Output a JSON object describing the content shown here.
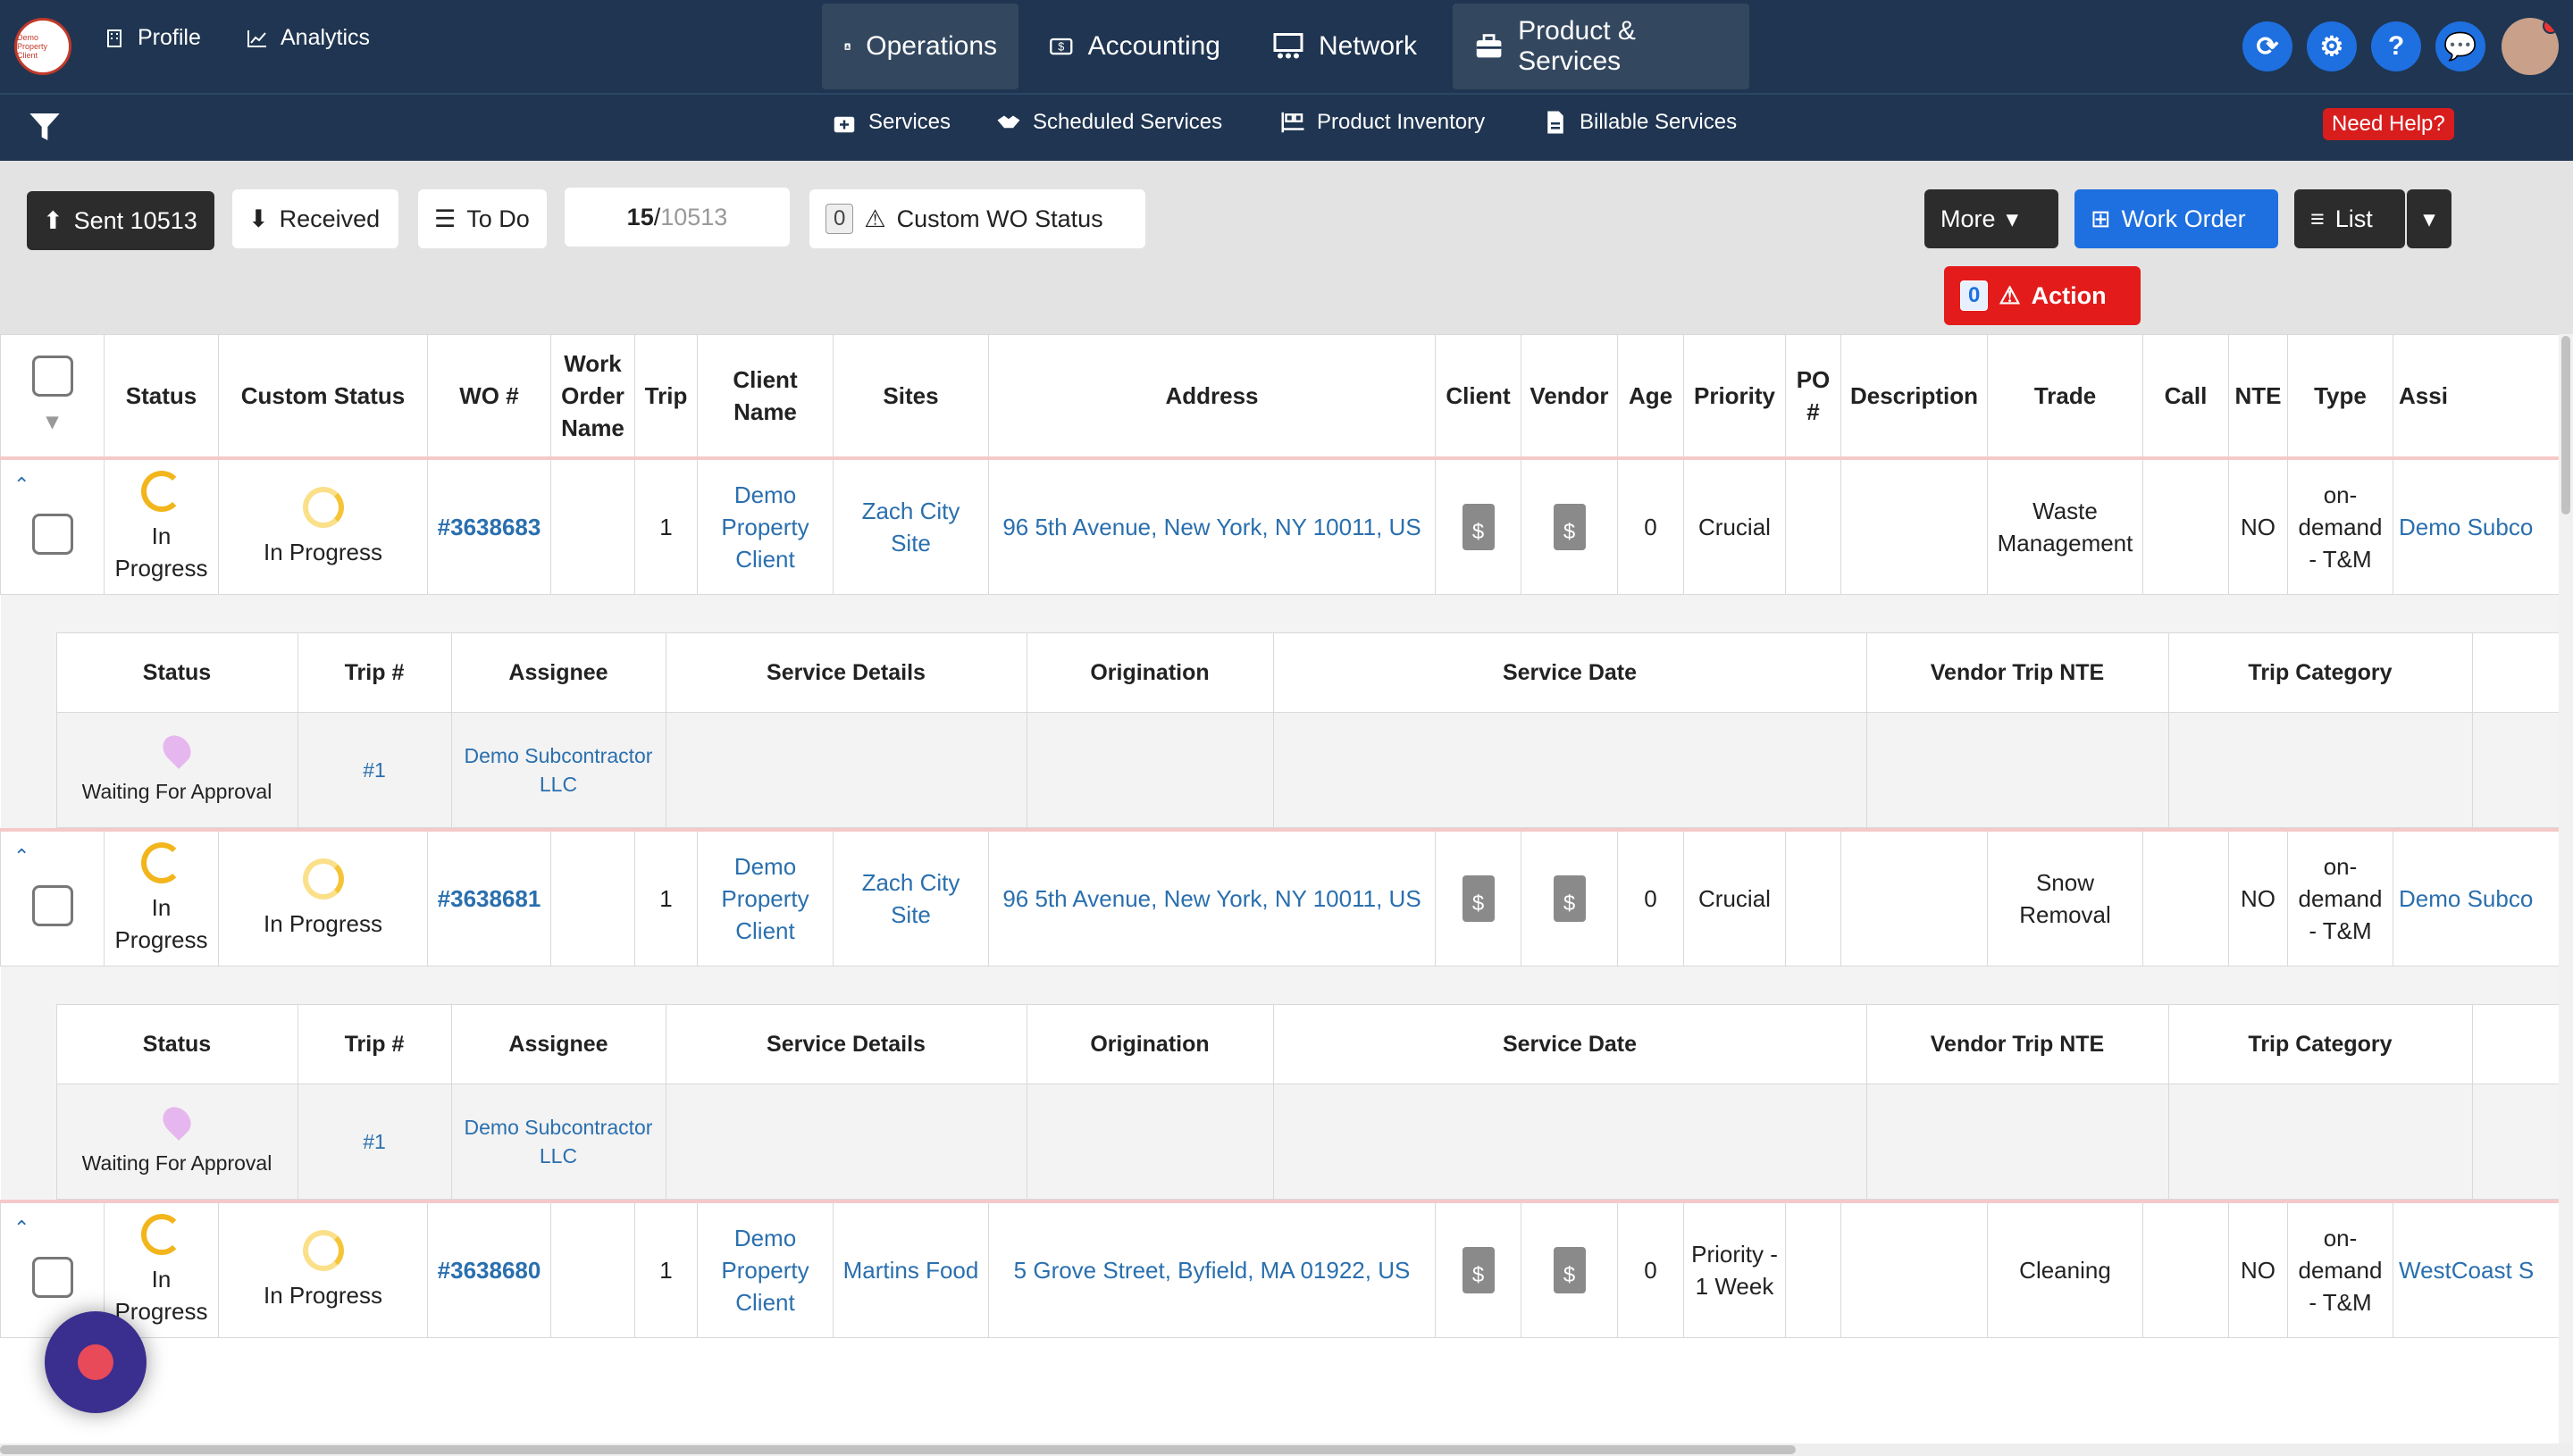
{
  "topnav": {
    "profile": "Profile",
    "analytics": "Analytics",
    "modules": [
      "Operations",
      "Accounting",
      "Network",
      "Product & Services"
    ],
    "logo_text": "Demo Property Client"
  },
  "subnav": {
    "items": [
      "Services",
      "Scheduled Services",
      "Product Inventory",
      "Billable Services"
    ],
    "need_help": "Need Help?"
  },
  "toolbar": {
    "sent": "Sent 10513",
    "received": "Received",
    "todo": "To Do",
    "page_current": "15",
    "page_sep": " / ",
    "page_total": "10513",
    "custom_count": "0",
    "custom_label": "Custom WO Status",
    "more": "More",
    "work_order": "Work Order",
    "list": "List",
    "action_count": "0",
    "action": "Action"
  },
  "table": {
    "headers": [
      "Status",
      "Custom Status",
      "WO #",
      "Work Order Name",
      "Trip",
      "Client Name",
      "Sites",
      "Address",
      "Client",
      "Vendor",
      "Age",
      "Priority",
      "PO #",
      "Description",
      "Trade",
      "Call",
      "NTE",
      "Type",
      "Assi"
    ],
    "rows": [
      {
        "status": "In Progress",
        "custom_status": "In Progress",
        "wo": "#3638683",
        "trip": "1",
        "client": "Demo Property Client",
        "site": "Zach City Site",
        "address": "96 5th Avenue, New York, NY 10011, US",
        "age": "0",
        "priority": "Crucial",
        "trade": "Waste Management",
        "nte": "NO",
        "type": "on-demand - T&M",
        "assignee": "Demo Subco"
      },
      {
        "status": "In Progress",
        "custom_status": "In Progress",
        "wo": "#3638681",
        "trip": "1",
        "client": "Demo Property Client",
        "site": "Zach City Site",
        "address": "96 5th Avenue, New York, NY 10011, US",
        "age": "0",
        "priority": "Crucial",
        "trade": "Snow Removal",
        "nte": "NO",
        "type": "on-demand - T&M",
        "assignee": "Demo Subco"
      },
      {
        "status": "In Progress",
        "custom_status": "In Progress",
        "wo": "#3638680",
        "trip": "1",
        "client": "Demo Property Client",
        "site": "Martins Food",
        "address": "5 Grove Street, Byfield, MA 01922, US",
        "age": "0",
        "priority": "Priority - 1 Week",
        "trade": "Cleaning",
        "nte": "NO",
        "type": "on-demand - T&M",
        "assignee": "WestCoast S"
      }
    ]
  },
  "subtable": {
    "headers": [
      "Status",
      "Trip #",
      "Assignee",
      "Service Details",
      "Origination",
      "Service Date",
      "Vendor Trip NTE",
      "Trip Category"
    ],
    "rows": [
      {
        "status": "Waiting For Approval",
        "trip": "#1",
        "assignee": "Demo Subcontractor LLC"
      },
      {
        "status": "Waiting For Approval",
        "trip": "#1",
        "assignee": "Demo Subcontractor LLC"
      }
    ]
  }
}
